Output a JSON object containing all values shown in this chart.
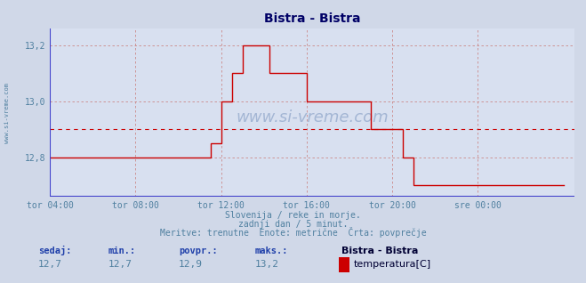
{
  "title": "Bistra - Bistra",
  "bg_color": "#d0d8e8",
  "plot_bg_color": "#d8e0f0",
  "grid_color": "#cc8888",
  "line_color": "#cc0000",
  "avg_line_color": "#cc0000",
  "blue_axis_color": "#4040cc",
  "text_color": "#5080a0",
  "label_color": "#2040aa",
  "ylim": [
    12.66,
    13.26
  ],
  "yticks": [
    12.8,
    13.0,
    13.2
  ],
  "ytick_labels": [
    "12,8",
    "13,0",
    "13,2"
  ],
  "xlim": [
    4,
    28.5
  ],
  "xtick_pos": [
    4,
    8,
    12,
    16,
    20,
    24
  ],
  "xlabel_ticks": [
    "tor 04:00",
    "tor 08:00",
    "tor 12:00",
    "tor 16:00",
    "tor 20:00",
    "sre 00:00"
  ],
  "avg_value": 12.9,
  "subtitle1": "Slovenija / reke in morje.",
  "subtitle2": "zadnji dan / 5 minut.",
  "subtitle3": "Meritve: trenutne  Enote: metrične  Črta: povprečje",
  "legend_label": "temperatura[C]",
  "legend_station": "Bistra - Bistra",
  "stats_labels": [
    "sedaj:",
    "min.:",
    "povpr.:",
    "maks.:"
  ],
  "stats_values": [
    "12,7",
    "12,7",
    "12,9",
    "13,2"
  ],
  "watermark": "www.si-vreme.com",
  "t_points": [
    4,
    11.0,
    11.5,
    12.0,
    12.5,
    13.0,
    13.75,
    14.25,
    15.5,
    16.0,
    17.0,
    19.0,
    20.25,
    20.5,
    21.0,
    28.0
  ],
  "v_points": [
    12.8,
    12.8,
    12.85,
    13.0,
    13.1,
    13.2,
    13.2,
    13.1,
    13.1,
    13.0,
    13.0,
    12.9,
    12.9,
    12.8,
    12.7,
    12.7
  ]
}
